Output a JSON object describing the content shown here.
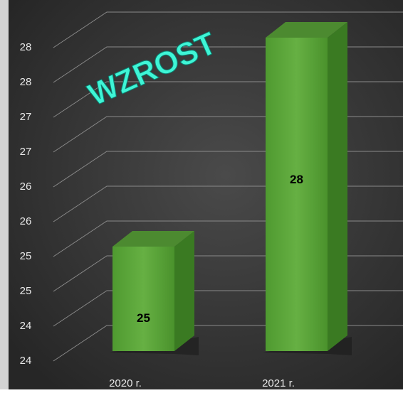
{
  "chart_data": {
    "type": "bar3d",
    "annotation": "WZROST",
    "categories": [
      "2020 r.",
      "2021 r."
    ],
    "values": [
      25,
      28
    ],
    "color": "#5aa33a",
    "ylim": [
      23.5,
      28.5
    ],
    "yticks": [
      {
        "value": 23.5,
        "label": "24"
      },
      24,
      {
        "value": 24.5,
        "label": "25"
      },
      25,
      {
        "value": 25.5,
        "label": "26"
      },
      26,
      {
        "value": 26.5,
        "label": "27"
      },
      27,
      {
        "value": 27.5,
        "label": "28"
      },
      28
    ],
    "grid": true
  }
}
